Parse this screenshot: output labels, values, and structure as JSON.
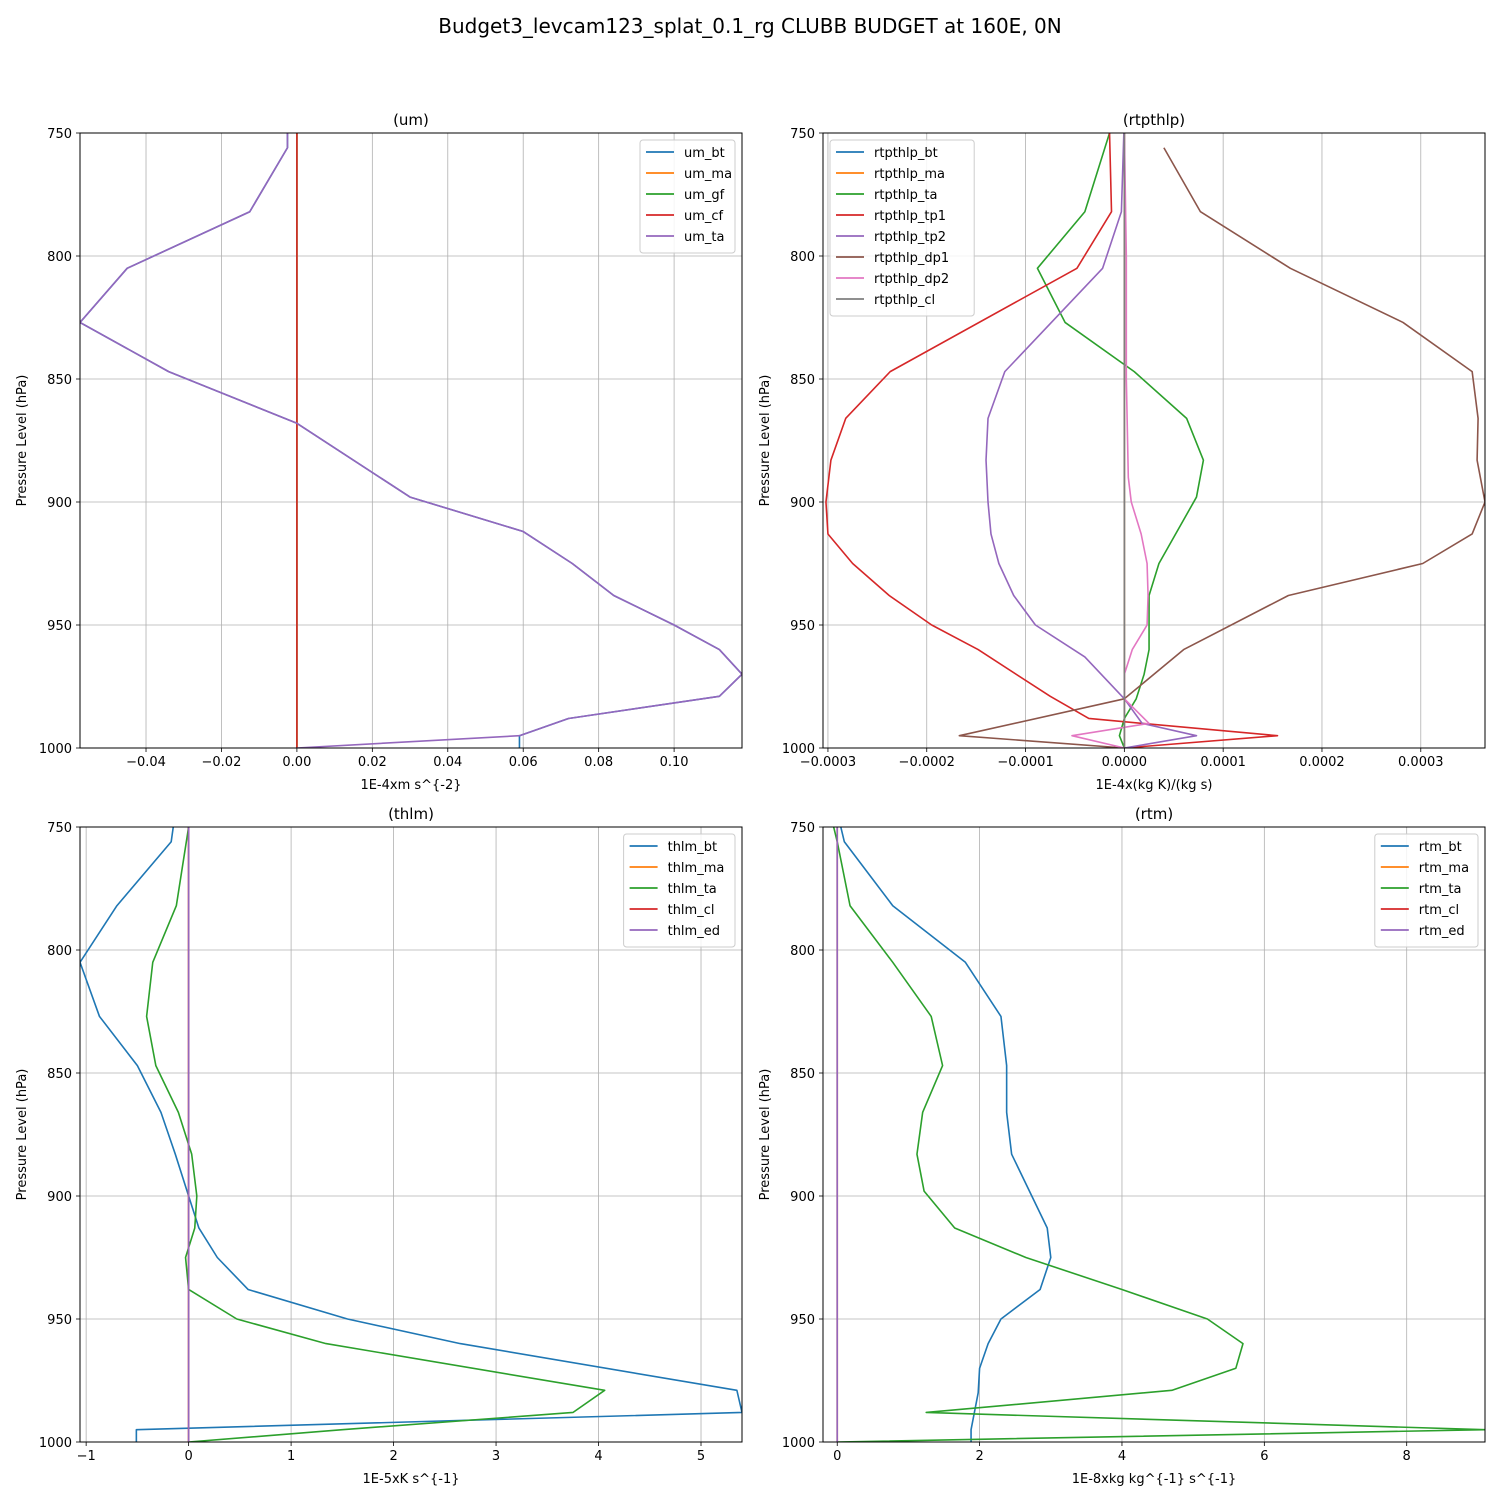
{
  "figure": {
    "title": "Budget3_levcam123_splat_0.1_rg CLUBB BUDGET at 160E, 0N"
  },
  "colors": {
    "c0": "#1f77b4",
    "c1": "#ff7f0e",
    "c2": "#2ca02c",
    "c3": "#d62728",
    "c4": "#9467bd",
    "c5": "#8c564b",
    "c6": "#e377c2",
    "c7": "#7f7f7f"
  },
  "chart_data": [
    {
      "type": "line",
      "title": "(um)",
      "xlabel": "1E-4xm s^{-2}",
      "ylabel": "Pressure Level (hPa)",
      "xlim": [
        -0.0575,
        0.118
      ],
      "ylim": [
        1000,
        750
      ],
      "xticks": [
        -0.04,
        -0.02,
        0.0,
        0.02,
        0.04,
        0.06,
        0.08,
        0.1
      ],
      "xtick_labels": [
        "−0.04",
        "−0.02",
        "0.00",
        "0.02",
        "0.04",
        "0.06",
        "0.08",
        "0.10"
      ],
      "yticks": [
        750,
        800,
        850,
        900,
        950,
        1000
      ],
      "ytick_labels": [
        "750",
        "800",
        "850",
        "900",
        "950",
        "1000"
      ],
      "grid": true,
      "legend": "upper right",
      "series": [
        {
          "name": "um_bt",
          "color": "c0",
          "x": [
            -0.0025,
            -0.0025,
            -0.0125,
            -0.045,
            -0.0575,
            -0.034,
            0.0,
            0.03,
            0.06,
            0.073,
            0.084,
            0.1,
            0.112,
            0.118,
            0.112,
            0.072,
            0.059,
            0.059
          ],
          "y": [
            750,
            756,
            782,
            805,
            827,
            847,
            868,
            898,
            912,
            925,
            938,
            950,
            960,
            970,
            979,
            988,
            995,
            1000
          ]
        },
        {
          "name": "um_ma",
          "color": "c1",
          "x": [
            0,
            0
          ],
          "y": [
            750,
            1000
          ]
        },
        {
          "name": "um_gf",
          "color": "c2",
          "x": [
            0,
            0
          ],
          "y": [
            750,
            1000
          ]
        },
        {
          "name": "um_cf",
          "color": "c3",
          "x": [
            0,
            0
          ],
          "y": [
            750,
            1000
          ]
        },
        {
          "name": "um_ta",
          "color": "c4",
          "x": [
            -0.0025,
            -0.0025,
            -0.0125,
            -0.045,
            -0.0575,
            -0.034,
            0.0,
            0.03,
            0.06,
            0.073,
            0.084,
            0.1,
            0.112,
            0.118,
            0.112,
            0.072,
            0.059,
            0.0
          ],
          "y": [
            750,
            756,
            782,
            805,
            827,
            847,
            868,
            898,
            912,
            925,
            938,
            950,
            960,
            970,
            979,
            988,
            995,
            1000
          ]
        }
      ]
    },
    {
      "type": "line",
      "title": "(rtpthlp)",
      "xlabel": "1E-4x(kg K)/(kg s)",
      "ylabel": "Pressure Level (hPa)",
      "xlim": [
        -0.000305,
        0.000365
      ],
      "ylim": [
        1000,
        750
      ],
      "xticks": [
        -0.0003,
        -0.0002,
        -0.0001,
        0.0,
        0.0001,
        0.0002,
        0.0003
      ],
      "xtick_labels": [
        "−0.0003",
        "−0.0002",
        "−0.0001",
        "0.0000",
        "0.0001",
        "0.0002",
        "0.0003"
      ],
      "yticks": [
        750,
        800,
        850,
        900,
        950,
        1000
      ],
      "ytick_labels": [
        "750",
        "800",
        "850",
        "900",
        "950",
        "1000"
      ],
      "grid": true,
      "legend": "upper left",
      "series": [
        {
          "name": "rtpthlp_bt",
          "color": "c0",
          "x": [
            0,
            0
          ],
          "y": [
            750,
            1000
          ]
        },
        {
          "name": "rtpthlp_ma",
          "color": "c1",
          "x": [
            0,
            0
          ],
          "y": [
            750,
            1000
          ]
        },
        {
          "name": "rtpthlp_ta",
          "color": "c2",
          "x": [
            -1.5e-05,
            -4e-05,
            -8.8e-05,
            -6e-05,
            1e-05,
            6.3e-05,
            8e-05,
            7.3e-05,
            3.5e-05,
            2.5e-05,
            2.5e-05,
            2.5e-05,
            2e-05,
            1.2e-05,
            0.0,
            -5e-06,
            0.0
          ],
          "y": [
            750,
            782,
            805,
            827,
            847,
            866,
            883,
            898,
            925,
            938,
            950,
            960,
            970,
            980,
            988,
            995,
            1000
          ]
        },
        {
          "name": "rtpthlp_tp1",
          "color": "c3",
          "x": [
            -1.5e-05,
            -1.3e-05,
            -4.8e-05,
            -0.000237,
            -0.000282,
            -0.000297,
            -0.000302,
            -0.0003,
            -0.000275,
            -0.000238,
            -0.000195,
            -0.000148,
            -7.5e-05,
            -3.6e-05,
            0.000155,
            0.0
          ],
          "y": [
            750,
            782,
            805,
            847,
            866,
            883,
            900,
            913,
            925,
            938,
            950,
            960,
            979,
            988,
            995,
            1000
          ]
        },
        {
          "name": "rtpthlp_tp2",
          "color": "c4",
          "x": [
            -5e-07,
            -3e-06,
            -2.2e-05,
            -0.000121,
            -0.000138,
            -0.00014,
            -0.000138,
            -0.000135,
            -0.000127,
            -0.000112,
            -9e-05,
            -4e-05,
            0.0,
            1.8e-05,
            7.3e-05,
            0.0
          ],
          "y": [
            750,
            782,
            805,
            847,
            866,
            883,
            900,
            913,
            925,
            938,
            950,
            963,
            980,
            990,
            995,
            1000
          ]
        },
        {
          "name": "rtpthlp_dp1",
          "color": "c5",
          "x": [
            4e-05,
            7.7e-05,
            0.000168,
            0.000282,
            0.000352,
            0.000358,
            0.000357,
            0.000365,
            0.000352,
            0.000302,
            0.000166,
            6e-05,
            0.0,
            -0.000167,
            0.0
          ],
          "y": [
            756,
            782,
            805,
            827,
            847,
            866,
            883,
            900,
            913,
            925,
            938,
            960,
            980,
            995,
            1000
          ]
        },
        {
          "name": "rtpthlp_dp2",
          "color": "c6",
          "x": [
            0,
            2e-06,
            2e-06,
            4e-06,
            7e-06,
            1.7e-05,
            2.3e-05,
            2.4e-05,
            2.3e-05,
            8e-06,
            0.0,
            0.0,
            2.5e-05,
            -5.3e-05,
            0.0
          ],
          "y": [
            750,
            800,
            850,
            890,
            900,
            913,
            925,
            938,
            950,
            960,
            970,
            980,
            990,
            995,
            1000
          ]
        },
        {
          "name": "rtpthlp_cl",
          "color": "c7",
          "x": [
            0,
            0
          ],
          "y": [
            750,
            1000
          ]
        }
      ]
    },
    {
      "type": "line",
      "title": "(thlm)",
      "xlabel": "1E-5xK s^{-1}",
      "ylabel": "Pressure Level (hPa)",
      "xlim": [
        -1.06,
        5.4
      ],
      "ylim": [
        1000,
        750
      ],
      "xticks": [
        -1,
        0,
        1,
        2,
        3,
        4,
        5
      ],
      "xtick_labels": [
        "−1",
        "0",
        "1",
        "2",
        "3",
        "4",
        "5"
      ],
      "yticks": [
        750,
        800,
        850,
        900,
        950,
        1000
      ],
      "ytick_labels": [
        "750",
        "800",
        "850",
        "900",
        "950",
        "1000"
      ],
      "grid": true,
      "legend": "upper right",
      "series": [
        {
          "name": "thlm_bt",
          "color": "c0",
          "x": [
            -0.15,
            -0.17,
            -0.7,
            -1.06,
            -0.87,
            -0.5,
            -0.27,
            -0.13,
            0.0,
            0.1,
            0.28,
            0.58,
            1.55,
            2.65,
            5.35,
            5.4,
            -0.51,
            -0.51
          ],
          "y": [
            750,
            756,
            782,
            805,
            827,
            847,
            866,
            883,
            900,
            913,
            925,
            938,
            950,
            960,
            979,
            988,
            995,
            1000
          ]
        },
        {
          "name": "thlm_ma",
          "color": "c1",
          "x": [
            0,
            0
          ],
          "y": [
            750,
            1000
          ]
        },
        {
          "name": "thlm_ta",
          "color": "c2",
          "x": [
            0.0,
            -0.12,
            -0.35,
            -0.41,
            -0.32,
            -0.1,
            0.03,
            0.08,
            0.06,
            -0.03,
            0.0,
            0.47,
            1.34,
            4.06,
            3.75,
            1.5,
            0.0
          ],
          "y": [
            750,
            782,
            805,
            827,
            847,
            866,
            883,
            900,
            913,
            925,
            938,
            950,
            960,
            979,
            988,
            995,
            1000
          ]
        },
        {
          "name": "thlm_cl",
          "color": "c3",
          "x": [
            0,
            0
          ],
          "y": [
            750,
            1000
          ]
        },
        {
          "name": "thlm_ed",
          "color": "c4",
          "x": [
            0,
            0
          ],
          "y": [
            750,
            1000
          ]
        }
      ]
    },
    {
      "type": "line",
      "title": "(rtm)",
      "xlabel": "1E-8xkg kg^{-1} s^{-1}",
      "ylabel": "Pressure Level (hPa)",
      "xlim": [
        -0.2,
        9.1
      ],
      "ylim": [
        1000,
        750
      ],
      "xticks": [
        0,
        2,
        4,
        6,
        8
      ],
      "xtick_labels": [
        "0",
        "2",
        "4",
        "6",
        "8"
      ],
      "yticks": [
        750,
        800,
        850,
        900,
        950,
        1000
      ],
      "ytick_labels": [
        "750",
        "800",
        "850",
        "900",
        "950",
        "1000"
      ],
      "grid": true,
      "legend": "upper right",
      "series": [
        {
          "name": "rtm_bt",
          "color": "c0",
          "x": [
            0.05,
            0.1,
            0.78,
            1.8,
            2.3,
            2.38,
            2.38,
            2.45,
            2.95,
            3.0,
            2.85,
            2.3,
            2.12,
            2.0,
            1.98,
            1.88,
            1.88
          ],
          "y": [
            750,
            756,
            782,
            805,
            827,
            847,
            866,
            883,
            913,
            925,
            938,
            950,
            960,
            970,
            980,
            995,
            1000
          ]
        },
        {
          "name": "rtm_ma",
          "color": "c1",
          "x": [
            0,
            0
          ],
          "y": [
            750,
            1000
          ]
        },
        {
          "name": "rtm_ta",
          "color": "c2",
          "x": [
            -0.05,
            0.0,
            0.18,
            0.78,
            1.32,
            1.48,
            1.2,
            1.12,
            1.22,
            1.65,
            2.65,
            4.0,
            5.2,
            5.7,
            5.6,
            4.7,
            1.25,
            9.1,
            0.0
          ],
          "y": [
            750,
            756,
            782,
            805,
            827,
            847,
            866,
            883,
            898,
            913,
            925,
            938,
            950,
            960,
            970,
            979,
            988,
            995,
            1000
          ]
        },
        {
          "name": "rtm_cl",
          "color": "c3",
          "x": [
            0,
            0
          ],
          "y": [
            750,
            1000
          ]
        },
        {
          "name": "rtm_ed",
          "color": "c4",
          "x": [
            0,
            0
          ],
          "y": [
            750,
            1000
          ]
        }
      ]
    }
  ]
}
